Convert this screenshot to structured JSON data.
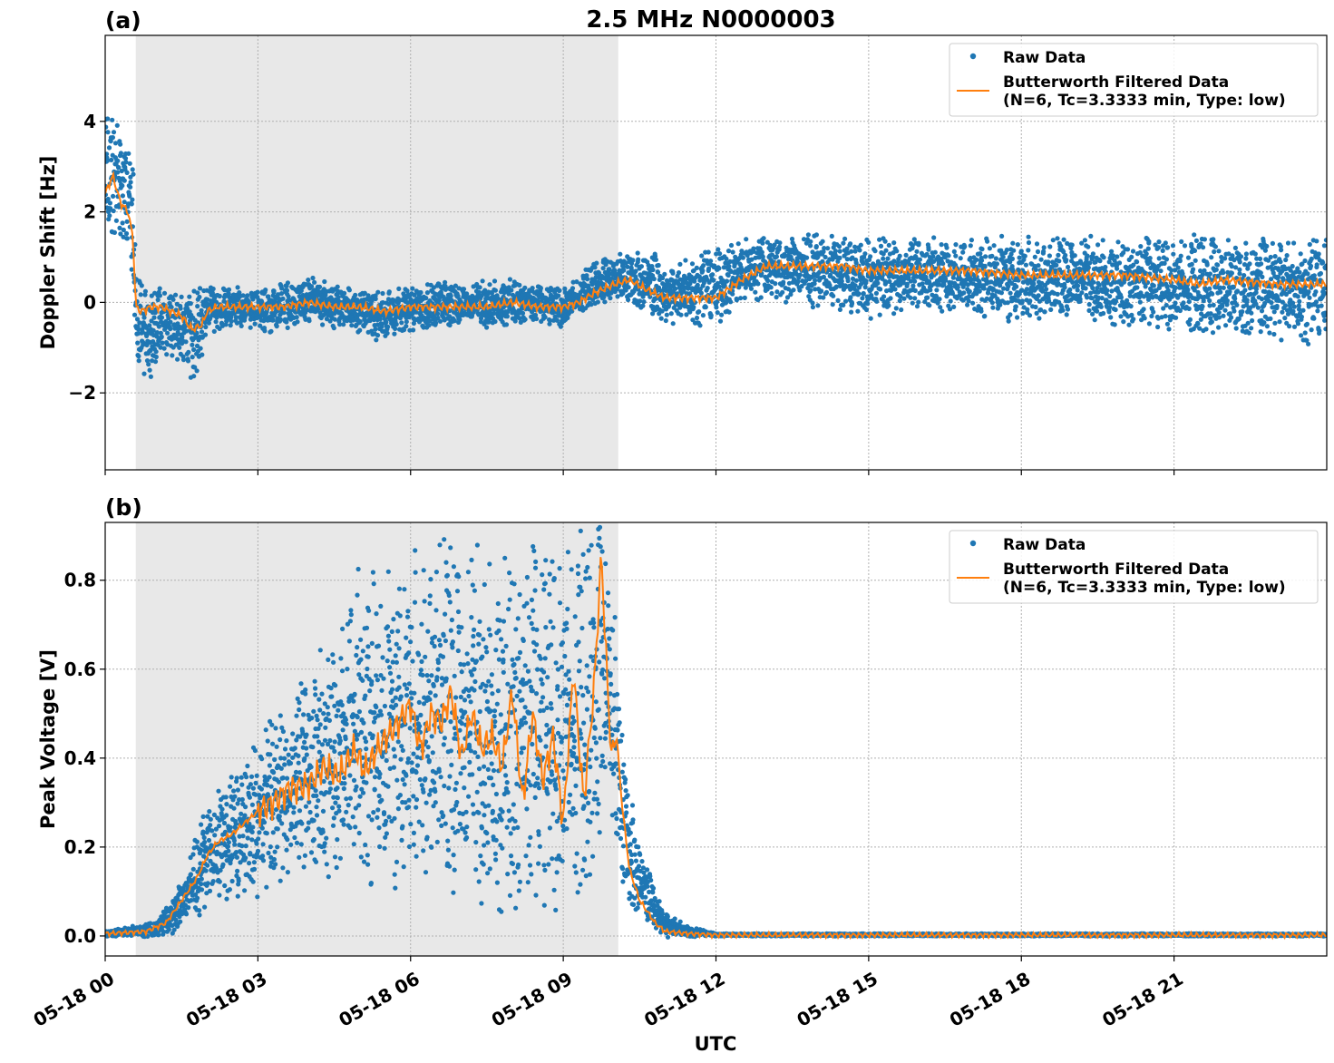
{
  "figure": {
    "title": "2.5 MHz N0000003",
    "xlabel": "UTC"
  },
  "chart_data": [
    {
      "panel_label": "(a)",
      "type": "scatter",
      "ylabel": "Doppler Shift [Hz]",
      "xlim_hours": [
        0,
        24
      ],
      "ylim": [
        -3.7,
        5.9
      ],
      "yticks": [
        -2,
        0,
        2,
        4
      ],
      "ytick_labels": [
        "−2",
        "0",
        "2",
        "4"
      ],
      "xticks_hours": [
        0,
        3,
        6,
        9,
        12,
        15,
        18,
        21
      ],
      "xtick_labels": [
        "05-18 00",
        "05-18 03",
        "05-18 06",
        "05-18 09",
        "05-18 12",
        "05-18 15",
        "05-18 18",
        "05-18 21"
      ],
      "shaded_span_hours": [
        0.6,
        10.08
      ],
      "grid": true,
      "legend_position": "top-right",
      "legend": [
        "Raw Data",
        "Butterworth Filtered Data",
        "(N=6, Tc=3.3333 min, Type: low)"
      ],
      "series": [
        {
          "name": "Raw Data",
          "kind": "scatter-band",
          "x_hours": [
            0,
            0.2,
            0.4,
            0.55,
            0.62,
            0.8,
            1.0,
            1.3,
            1.6,
            1.8,
            2.0,
            2.5,
            3.0,
            3.5,
            4.0,
            4.5,
            5.0,
            5.5,
            6.0,
            6.5,
            7.0,
            7.5,
            8.0,
            8.5,
            9.0,
            9.3,
            9.6,
            10.0,
            10.4,
            10.8,
            11.0,
            11.5,
            12.0,
            12.5,
            13.0,
            14.0,
            15.0,
            16.0,
            17.0,
            18.0,
            19.0,
            20.0,
            21.0,
            22.0,
            23.0,
            24.0
          ],
          "y_low": [
            1.0,
            1.5,
            1.4,
            0.6,
            -1.6,
            -1.6,
            -1.3,
            -1.1,
            -1.4,
            -1.6,
            -0.6,
            -0.5,
            -0.6,
            -0.6,
            -0.4,
            -0.5,
            -0.6,
            -0.8,
            -0.6,
            -0.5,
            -0.4,
            -0.5,
            -0.4,
            -0.4,
            -0.5,
            -0.2,
            0.0,
            0.1,
            0.0,
            -0.3,
            -0.4,
            -0.4,
            -0.4,
            0.0,
            0.2,
            0.0,
            -0.2,
            -0.1,
            -0.2,
            -0.3,
            -0.2,
            -0.4,
            -0.5,
            -0.6,
            -0.7,
            -0.8
          ],
          "y_high": [
            4.4,
            3.9,
            3.5,
            3.2,
            0.4,
            0.3,
            0.2,
            0.2,
            0.2,
            0.2,
            0.3,
            0.3,
            0.2,
            0.4,
            0.5,
            0.4,
            0.3,
            0.2,
            0.3,
            0.4,
            0.3,
            0.4,
            0.5,
            0.3,
            0.3,
            0.5,
            0.8,
            1.0,
            1.1,
            1.0,
            0.6,
            1.0,
            1.1,
            1.3,
            1.4,
            1.4,
            1.3,
            1.3,
            1.3,
            1.3,
            1.3,
            1.3,
            1.3,
            1.3,
            1.3,
            1.3
          ]
        },
        {
          "name": "Butterworth Filtered Data",
          "kind": "line",
          "x_hours": [
            0,
            0.15,
            0.3,
            0.45,
            0.55,
            0.6,
            0.7,
            0.9,
            1.1,
            1.3,
            1.5,
            1.7,
            1.9,
            2.0,
            2.2,
            2.5,
            3.0,
            3.5,
            4.0,
            4.5,
            5.0,
            5.5,
            6.0,
            6.5,
            7.0,
            7.5,
            8.0,
            8.5,
            9.0,
            9.3,
            9.6,
            10.0,
            10.3,
            10.6,
            11.0,
            11.5,
            12.0,
            12.5,
            13.0,
            13.5,
            14.0,
            14.5,
            15.0,
            16.0,
            17.0,
            18.0,
            19.0,
            20.0,
            21.0,
            21.5,
            22.0,
            23.0,
            24.0
          ],
          "y": [
            2.4,
            2.8,
            2.2,
            2.0,
            1.4,
            -0.1,
            -0.2,
            -0.1,
            -0.1,
            -0.2,
            -0.3,
            -0.6,
            -0.5,
            -0.2,
            -0.1,
            -0.1,
            -0.1,
            -0.1,
            0.0,
            -0.1,
            -0.1,
            -0.2,
            -0.1,
            -0.1,
            -0.1,
            -0.1,
            0.0,
            -0.1,
            -0.1,
            0.0,
            0.2,
            0.4,
            0.5,
            0.3,
            0.1,
            0.1,
            0.1,
            0.5,
            0.8,
            0.8,
            0.8,
            0.8,
            0.7,
            0.7,
            0.7,
            0.6,
            0.6,
            0.6,
            0.5,
            0.4,
            0.5,
            0.4,
            0.4
          ]
        }
      ]
    },
    {
      "panel_label": "(b)",
      "type": "scatter",
      "ylabel": "Peak Voltage [V]",
      "xlim_hours": [
        0,
        24
      ],
      "ylim": [
        -0.045,
        0.93
      ],
      "yticks": [
        0.0,
        0.2,
        0.4,
        0.6,
        0.8
      ],
      "ytick_labels": [
        "0.0",
        "0.2",
        "0.4",
        "0.6",
        "0.8"
      ],
      "xticks_hours": [
        0,
        3,
        6,
        9,
        12,
        15,
        18,
        21
      ],
      "xtick_labels": [
        "05-18 00",
        "05-18 03",
        "05-18 06",
        "05-18 09",
        "05-18 12",
        "05-18 15",
        "05-18 18",
        "05-18 21"
      ],
      "shaded_span_hours": [
        0.6,
        10.08
      ],
      "grid": true,
      "legend_position": "top-right",
      "legend": [
        "Raw Data",
        "Butterworth Filtered Data",
        "(N=6, Tc=3.3333 min, Type: low)"
      ],
      "series": [
        {
          "name": "Raw Data",
          "kind": "scatter-band",
          "x_hours": [
            0,
            1.0,
            1.5,
            2.0,
            2.5,
            3.0,
            3.5,
            4.0,
            4.5,
            5.0,
            5.5,
            6.0,
            6.5,
            7.0,
            7.5,
            8.0,
            8.5,
            9.0,
            9.5,
            9.7,
            9.85,
            10.0,
            10.2,
            10.5,
            10.8,
            11.0,
            11.5,
            12.0,
            24.0
          ],
          "y_low": [
            0.0,
            0.0,
            0.02,
            0.08,
            0.1,
            0.12,
            0.15,
            0.15,
            0.15,
            0.15,
            0.15,
            0.18,
            0.18,
            0.1,
            0.12,
            0.1,
            0.1,
            0.1,
            0.15,
            0.25,
            0.4,
            0.2,
            0.1,
            0.05,
            0.02,
            0.0,
            0.0,
            0.0,
            0.0
          ],
          "y_high": [
            0.01,
            0.03,
            0.12,
            0.28,
            0.35,
            0.42,
            0.5,
            0.56,
            0.65,
            0.8,
            0.75,
            0.8,
            0.85,
            0.82,
            0.8,
            0.85,
            0.82,
            0.85,
            0.83,
            0.89,
            0.88,
            0.72,
            0.4,
            0.2,
            0.1,
            0.05,
            0.02,
            0.005,
            0.005
          ]
        },
        {
          "name": "Butterworth Filtered Data",
          "kind": "line",
          "x_hours": [
            0,
            0.8,
            1.2,
            1.5,
            1.8,
            2.0,
            2.2,
            2.5,
            2.8,
            3.0,
            3.3,
            3.6,
            4.0,
            4.3,
            4.6,
            4.9,
            5.1,
            5.4,
            5.7,
            6.0,
            6.2,
            6.4,
            6.6,
            6.8,
            7.0,
            7.2,
            7.4,
            7.6,
            7.8,
            8.0,
            8.2,
            8.4,
            8.6,
            8.8,
            9.0,
            9.2,
            9.4,
            9.6,
            9.75,
            9.85,
            9.95,
            10.05,
            10.15,
            10.3,
            10.5,
            10.8,
            11.0,
            11.5,
            12.0,
            24.0
          ],
          "y": [
            0.005,
            0.01,
            0.03,
            0.08,
            0.13,
            0.18,
            0.21,
            0.23,
            0.26,
            0.28,
            0.3,
            0.33,
            0.34,
            0.38,
            0.36,
            0.42,
            0.37,
            0.43,
            0.47,
            0.52,
            0.42,
            0.5,
            0.48,
            0.55,
            0.4,
            0.5,
            0.42,
            0.45,
            0.38,
            0.55,
            0.3,
            0.5,
            0.35,
            0.45,
            0.25,
            0.6,
            0.3,
            0.55,
            0.86,
            0.6,
            0.4,
            0.45,
            0.3,
            0.15,
            0.08,
            0.03,
            0.01,
            0.005,
            0.002,
            0.002
          ]
        }
      ]
    }
  ],
  "colors": {
    "raw": "#1f77b4",
    "filtered": "#ff7f0e",
    "shade": "#e8e8e8",
    "grid": "#b0b0b0"
  }
}
